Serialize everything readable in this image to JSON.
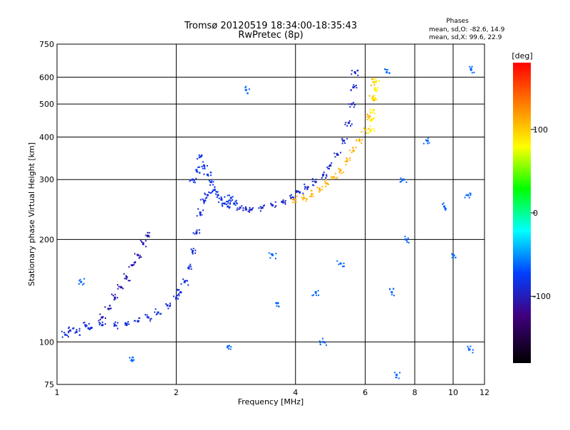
{
  "chart_data": {
    "type": "scatter",
    "title": "Tromsø 20120519 18:34:00-18:35:43",
    "subtitle": "RwPretec (8p)",
    "xlabel": "Frequency [MHz]",
    "ylabel": "Stationary phase Virtual Height [km]",
    "x_scale": "log",
    "y_scale": "log",
    "xlim": [
      1,
      12
    ],
    "ylim": [
      75,
      750
    ],
    "x_ticks": [
      "1",
      "2",
      "4",
      "6",
      "8",
      "10",
      "12"
    ],
    "y_ticks": [
      "75",
      "100",
      "200",
      "300",
      "400",
      "500",
      "600",
      "750"
    ],
    "grid": true,
    "stats": {
      "heading": "Phases",
      "line1": "mean, sd,O:  -82.6, 14.9",
      "line2": "mean, sd,X:  99.6, 22.9"
    },
    "colorbar": {
      "label": "[deg]",
      "range": [
        -180,
        180
      ],
      "ticks": [
        "100",
        "0",
        "-100"
      ]
    },
    "traces": [
      {
        "name_hint": "O-mode low F1 branch",
        "phase": -85,
        "points": [
          [
            1.05,
            105
          ],
          [
            1.08,
            108
          ],
          [
            1.12,
            107
          ],
          [
            1.18,
            112
          ],
          [
            1.22,
            110
          ],
          [
            1.3,
            112
          ],
          [
            1.4,
            112
          ],
          [
            1.5,
            113
          ],
          [
            1.6,
            115
          ],
          [
            1.7,
            118
          ],
          [
            1.8,
            122
          ],
          [
            1.9,
            128
          ],
          [
            2.0,
            135
          ],
          [
            2.05,
            140
          ],
          [
            2.1,
            150
          ],
          [
            2.15,
            165
          ],
          [
            2.2,
            185
          ],
          [
            2.25,
            210
          ],
          [
            2.3,
            240
          ],
          [
            2.35,
            260
          ],
          [
            2.4,
            270
          ]
        ]
      },
      {
        "name_hint": "O-mode upper branch near 1.5 MHz",
        "phase": -100,
        "points": [
          [
            1.3,
            118
          ],
          [
            1.35,
            125
          ],
          [
            1.4,
            135
          ],
          [
            1.45,
            145
          ],
          [
            1.5,
            155
          ],
          [
            1.55,
            168
          ],
          [
            1.6,
            180
          ],
          [
            1.65,
            195
          ],
          [
            1.7,
            205
          ]
        ]
      },
      {
        "name_hint": "O-mode F2 trace",
        "phase": -90,
        "points": [
          [
            2.9,
            248
          ],
          [
            3.0,
            245
          ],
          [
            3.1,
            245
          ],
          [
            3.3,
            248
          ],
          [
            3.5,
            252
          ],
          [
            3.7,
            258
          ],
          [
            3.9,
            265
          ],
          [
            4.1,
            275
          ],
          [
            4.3,
            285
          ],
          [
            4.5,
            295
          ],
          [
            4.7,
            310
          ],
          [
            4.9,
            330
          ],
          [
            5.1,
            355
          ],
          [
            5.3,
            390
          ],
          [
            5.45,
            440
          ],
          [
            5.55,
            500
          ],
          [
            5.6,
            560
          ],
          [
            5.65,
            620
          ]
        ]
      },
      {
        "name_hint": "O-mode cusp cluster near 2.5 MHz",
        "phase": -80,
        "points": [
          [
            2.2,
            300
          ],
          [
            2.25,
            320
          ],
          [
            2.3,
            350
          ],
          [
            2.35,
            330
          ],
          [
            2.4,
            310
          ],
          [
            2.45,
            295
          ],
          [
            2.5,
            280
          ],
          [
            2.55,
            270
          ],
          [
            2.6,
            262
          ],
          [
            2.65,
            255
          ],
          [
            2.7,
            250
          ],
          [
            2.75,
            265
          ],
          [
            2.8,
            255
          ]
        ]
      },
      {
        "name_hint": "X-mode F2 trace",
        "phase": 110,
        "points": [
          [
            4.0,
            262
          ],
          [
            4.2,
            265
          ],
          [
            4.4,
            272
          ],
          [
            4.6,
            282
          ],
          [
            4.8,
            292
          ],
          [
            5.0,
            305
          ],
          [
            5.2,
            320
          ],
          [
            5.4,
            340
          ],
          [
            5.6,
            365
          ],
          [
            5.8,
            390
          ],
          [
            6.0,
            420
          ],
          [
            6.15,
            460
          ],
          [
            6.25,
            520
          ],
          [
            6.3,
            580
          ]
        ]
      },
      {
        "name_hint": "X-mode cusp near 6.3 MHz",
        "phase": 85,
        "points": [
          [
            6.2,
            420
          ],
          [
            6.25,
            450
          ],
          [
            6.3,
            480
          ],
          [
            6.32,
            520
          ],
          [
            6.35,
            550
          ],
          [
            6.38,
            580
          ]
        ]
      },
      {
        "name_hint": "isolated scatter",
        "phase": -60,
        "points": [
          [
            1.15,
            150
          ],
          [
            1.55,
            88
          ],
          [
            2.7,
            97
          ],
          [
            3.0,
            550
          ],
          [
            3.5,
            180
          ],
          [
            3.6,
            130
          ],
          [
            4.5,
            140
          ],
          [
            4.7,
            100
          ],
          [
            5.2,
            170
          ],
          [
            6.8,
            620
          ],
          [
            7.0,
            140
          ],
          [
            7.2,
            80
          ],
          [
            7.5,
            300
          ],
          [
            7.6,
            200
          ],
          [
            8.6,
            390
          ],
          [
            9.5,
            250
          ],
          [
            10.0,
            180
          ],
          [
            10.9,
            270
          ],
          [
            11.0,
            95
          ],
          [
            11.1,
            630
          ]
        ]
      }
    ]
  }
}
